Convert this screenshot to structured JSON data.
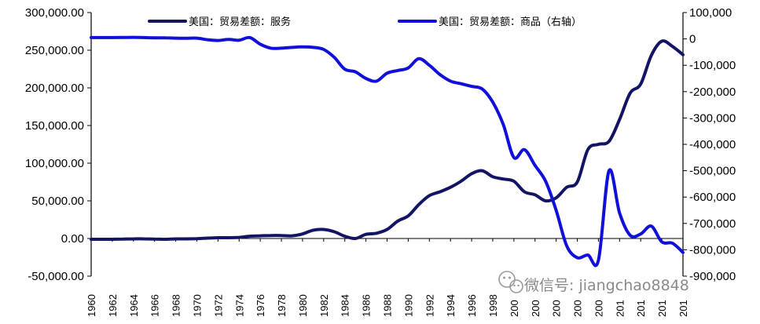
{
  "chart_data": {
    "type": "line",
    "title": "",
    "xlabel": "",
    "y_left": {
      "range": [
        -50000,
        300000
      ],
      "ticks": [
        "300,000.00",
        "250,000.00",
        "200,000.00",
        "150,000.00",
        "100,000.00",
        "50,000.00",
        "0.00",
        "-50,000.00"
      ]
    },
    "y_right": {
      "range": [
        -900000,
        100000
      ],
      "ticks": [
        "100,000",
        "0",
        "-100,000",
        "-200,000",
        "-300,000",
        "-400,000",
        "-500,000",
        "-600,000",
        "-700,000",
        "-800,000",
        "-900,000"
      ]
    },
    "x_range": [
      1960,
      2016
    ],
    "x_ticks": [
      "1960",
      "1962",
      "1964",
      "1966",
      "1968",
      "1970",
      "1972",
      "1974",
      "1976",
      "1978",
      "1980",
      "1982",
      "1984",
      "1986",
      "1988",
      "1990",
      "1992",
      "1994",
      "1996",
      "1998",
      "200",
      "200",
      "200",
      "200",
      "200",
      "201",
      "201",
      "201",
      "201"
    ],
    "legend_placement": "top",
    "grid": false,
    "series": [
      {
        "name": "美国：贸易差额：服务",
        "axis": "left",
        "color": "#141464",
        "x": [
          1960,
          1961,
          1962,
          1963,
          1964,
          1965,
          1966,
          1967,
          1968,
          1969,
          1970,
          1971,
          1972,
          1973,
          1974,
          1975,
          1976,
          1977,
          1978,
          1979,
          1980,
          1981,
          1982,
          1983,
          1984,
          1985,
          1986,
          1987,
          1988,
          1989,
          1990,
          1991,
          1992,
          1993,
          1994,
          1995,
          1996,
          1997,
          1998,
          1999,
          2000,
          2001,
          2002,
          2003,
          2004,
          2005,
          2006,
          2007,
          2008,
          2009,
          2010,
          2011,
          2012,
          2013,
          2014,
          2015,
          2016
        ],
        "values": [
          -1000,
          -1000,
          -1000,
          -800,
          -500,
          -500,
          -800,
          -1000,
          -500,
          -500,
          -300,
          500,
          1000,
          1000,
          1500,
          3000,
          3500,
          4000,
          4000,
          3500,
          6000,
          11000,
          12000,
          9000,
          3000,
          0,
          5500,
          7000,
          12000,
          23000,
          30000,
          45000,
          57000,
          62000,
          68000,
          76000,
          86000,
          90000,
          82000,
          79000,
          76000,
          62000,
          58000,
          50000,
          54000,
          68000,
          75000,
          118000,
          125000,
          129000,
          158000,
          193000,
          205000,
          243000,
          262000,
          255000,
          244000
        ]
      },
      {
        "name": "美国：贸易差额：商品（右轴）",
        "axis": "right",
        "color": "#1010d8",
        "x": [
          1960,
          1961,
          1962,
          1963,
          1964,
          1965,
          1966,
          1967,
          1968,
          1969,
          1970,
          1971,
          1972,
          1973,
          1974,
          1975,
          1976,
          1977,
          1978,
          1979,
          1980,
          1981,
          1982,
          1983,
          1984,
          1985,
          1986,
          1987,
          1988,
          1989,
          1990,
          1991,
          1992,
          1993,
          1994,
          1995,
          1996,
          1997,
          1998,
          1999,
          2000,
          2001,
          2002,
          2003,
          2004,
          2005,
          2006,
          2007,
          2008,
          2009,
          2010,
          2011,
          2012,
          2013,
          2014,
          2015,
          2016
        ],
        "values": [
          5000,
          5000,
          5000,
          5500,
          6000,
          5000,
          4000,
          4000,
          3000,
          2500,
          3000,
          -3000,
          -6000,
          -2000,
          -5000,
          5000,
          -20000,
          -35000,
          -35000,
          -32000,
          -30000,
          -32000,
          -40000,
          -70000,
          -115000,
          -125000,
          -150000,
          -160000,
          -130000,
          -120000,
          -110000,
          -75000,
          -100000,
          -135000,
          -160000,
          -170000,
          -180000,
          -190000,
          -240000,
          -325000,
          -450000,
          -420000,
          -480000,
          -540000,
          -650000,
          -785000,
          -830000,
          -820000,
          -840000,
          -500000,
          -660000,
          -745000,
          -740000,
          -710000,
          -770000,
          -775000,
          -810000
        ]
      }
    ]
  },
  "watermark": {
    "icon": "wechat-icon",
    "text": "微信号: jiangchao8848"
  }
}
